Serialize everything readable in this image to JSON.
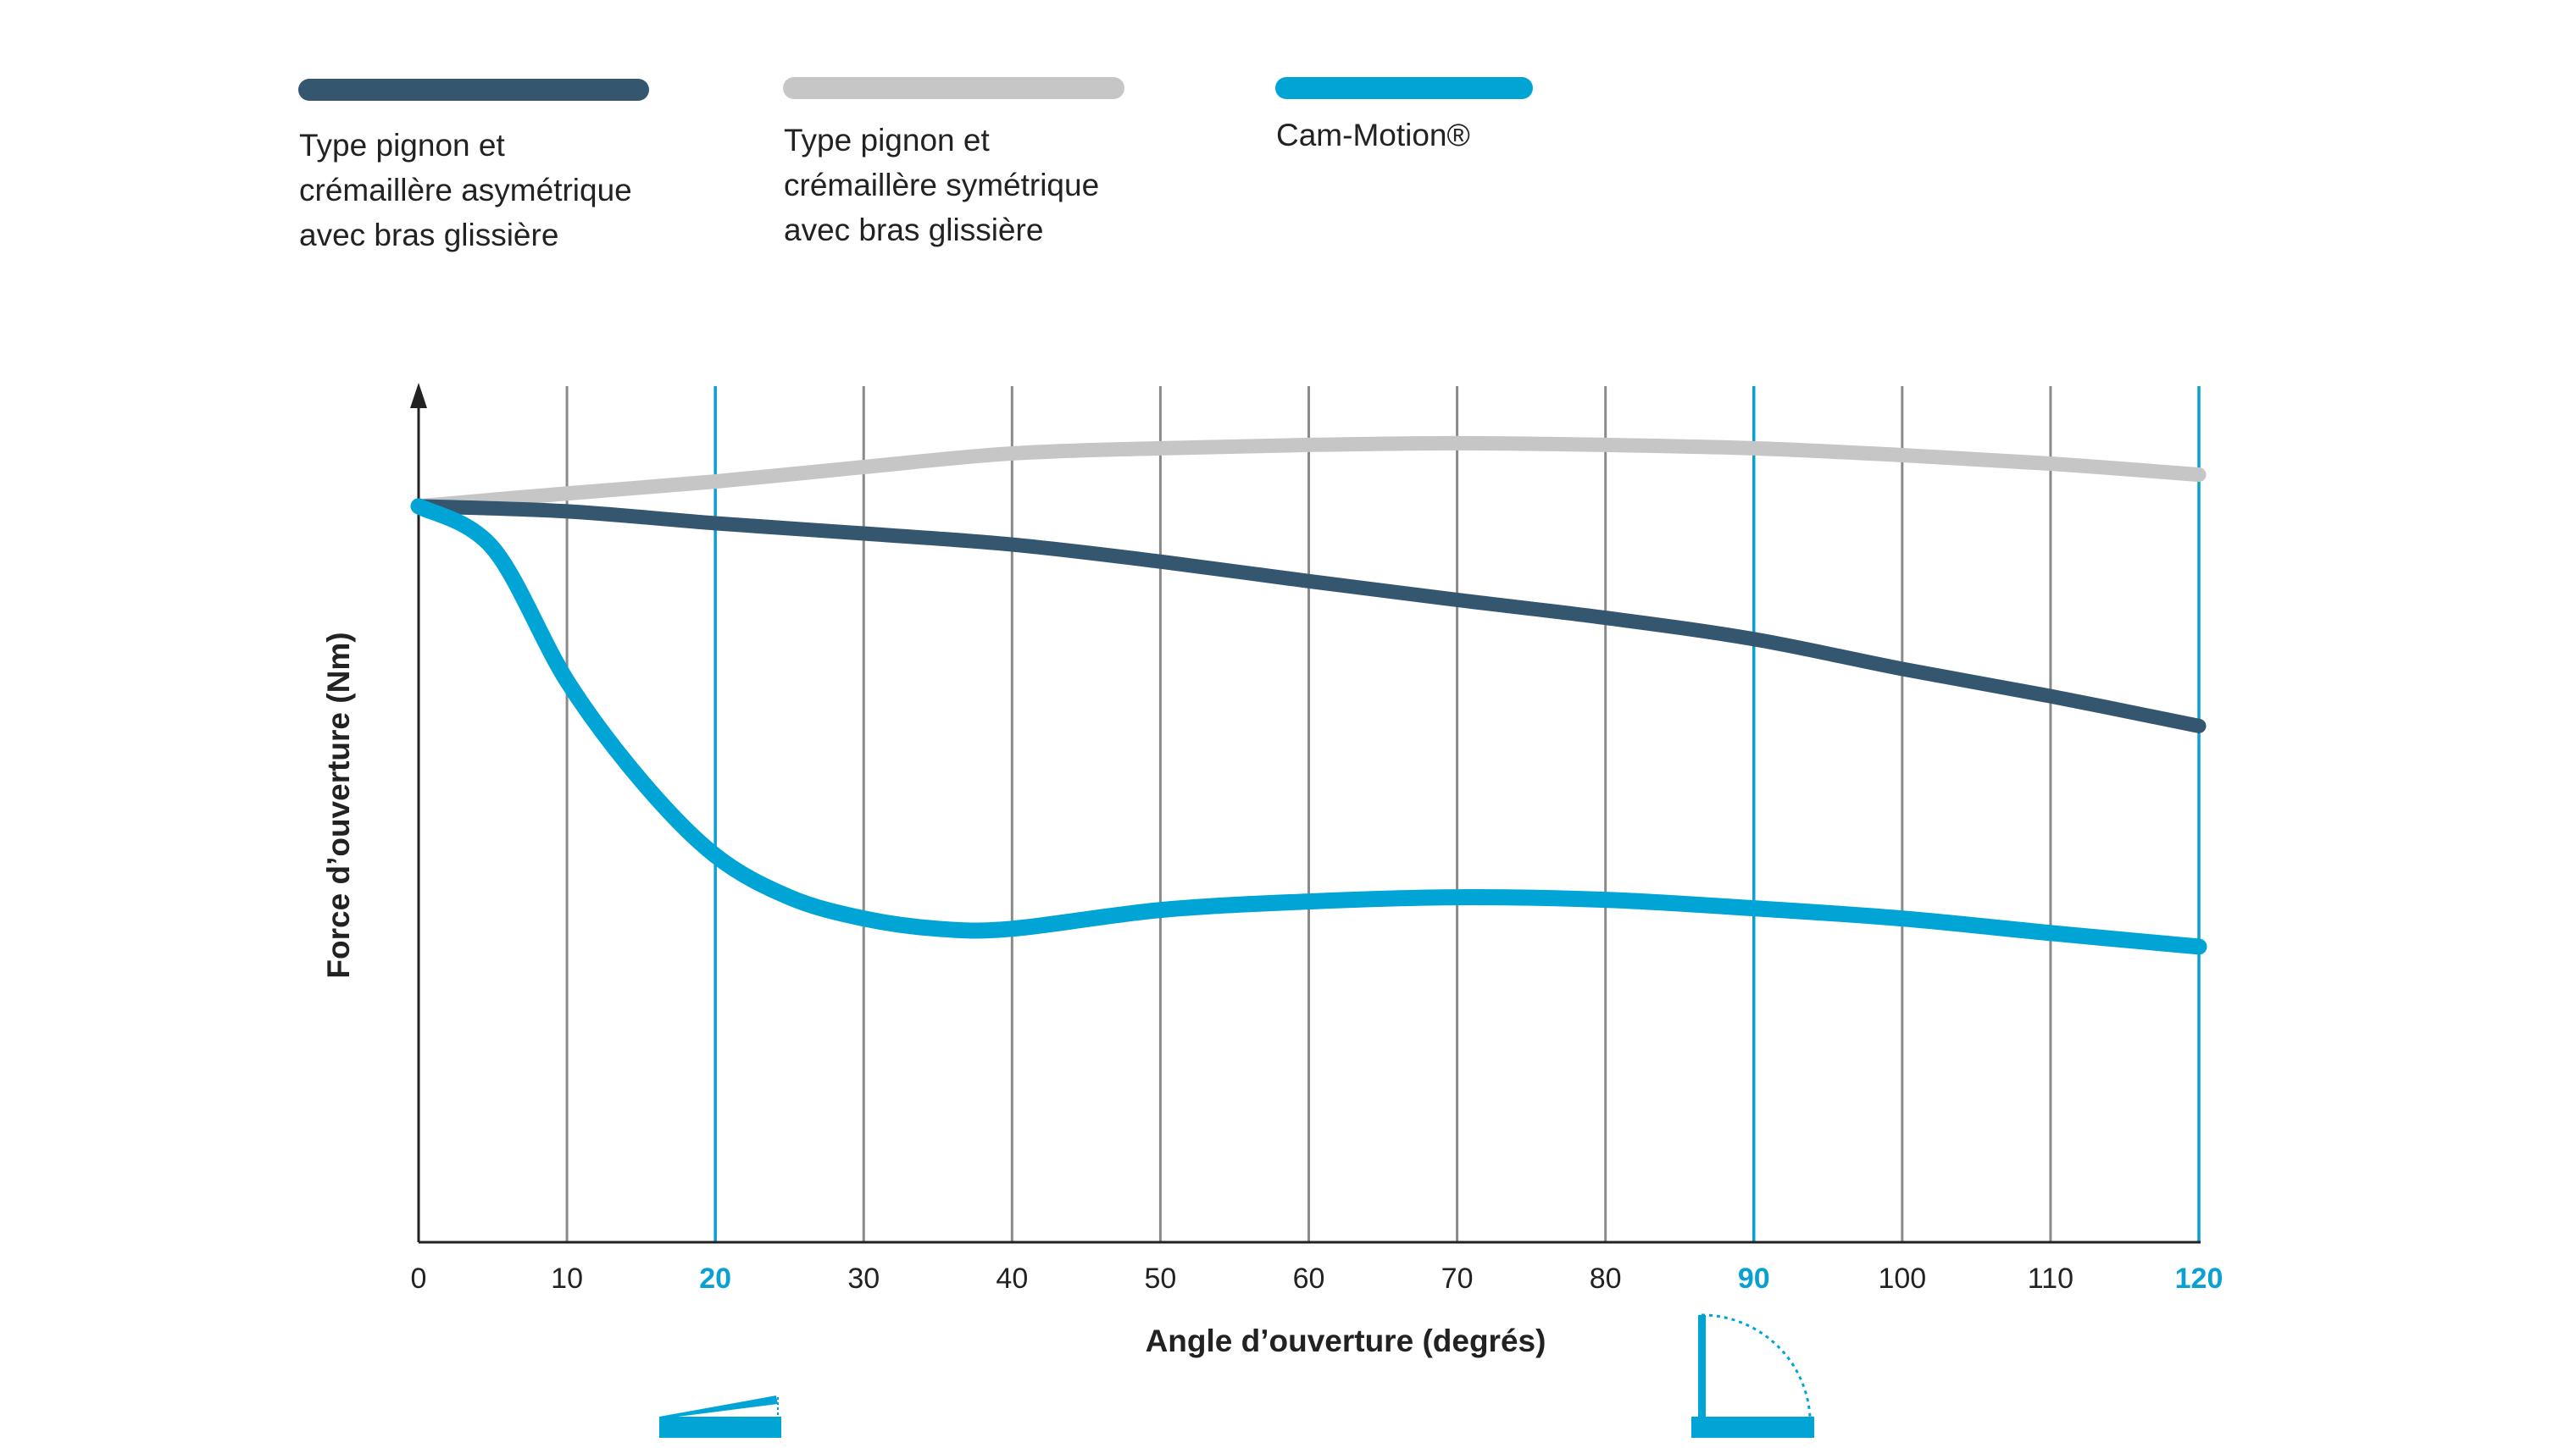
{
  "chart_data": {
    "type": "line",
    "title": "",
    "xlabel": "Angle d’ouverture (degrés)",
    "ylabel": "Force d’ouverture (Nm)",
    "xlim": [
      0,
      120
    ],
    "ylim": [
      0,
      100
    ],
    "grid": "vertical",
    "legend_placement": "top",
    "x_ticks": [
      0,
      10,
      20,
      30,
      40,
      50,
      60,
      70,
      80,
      90,
      100,
      110,
      120
    ],
    "highlight_ticks": [
      20,
      90,
      120
    ],
    "colors": {
      "asym": "#34566f",
      "sym": "#c6c6c6",
      "cam": "#00a5d6",
      "grid": "#8a8a8a",
      "highlight": "#0aa0d2"
    },
    "series": [
      {
        "name": "Type pignon et crémaillère asymétrique avec bras glissière",
        "legend_lines": [
          "Type pignon et",
          "crémaillère asymétrique",
          "avec bras glissière"
        ],
        "color": "#34566f",
        "x": [
          0,
          10,
          20,
          30,
          40,
          50,
          60,
          70,
          80,
          90,
          100,
          110,
          120
        ],
        "y": [
          86.4,
          85.8,
          84.4,
          83.2,
          81.9,
          79.9,
          77.6,
          75.4,
          73.3,
          70.8,
          67.3,
          64.1,
          60.6
        ]
      },
      {
        "name": "Type pignon et crémaillère symétrique avec bras glissière",
        "legend_lines": [
          "Type pignon et",
          "crémaillère symétrique",
          "avec bras glissière"
        ],
        "color": "#c6c6c6",
        "x": [
          0,
          10,
          20,
          30,
          40,
          50,
          60,
          70,
          80,
          90,
          100,
          110,
          120
        ],
        "y": [
          86.4,
          87.9,
          89.3,
          91.0,
          92.6,
          93.2,
          93.6,
          93.8,
          93.6,
          93.2,
          92.4,
          91.4,
          90.1
        ]
      },
      {
        "name": "Cam-Motion®",
        "legend_lines": [
          "Cam-Motion®"
        ],
        "color": "#00a5d6",
        "x": [
          0,
          5,
          10,
          15,
          20,
          25,
          30,
          35,
          40,
          50,
          60,
          70,
          80,
          90,
          100,
          110,
          120
        ],
        "y": [
          86.4,
          81.5,
          65.9,
          54.2,
          45.4,
          40.5,
          38.0,
          36.8,
          36.8,
          39.0,
          40.0,
          40.5,
          40.2,
          39.2,
          38.0,
          36.3,
          34.7
        ]
      }
    ]
  }
}
